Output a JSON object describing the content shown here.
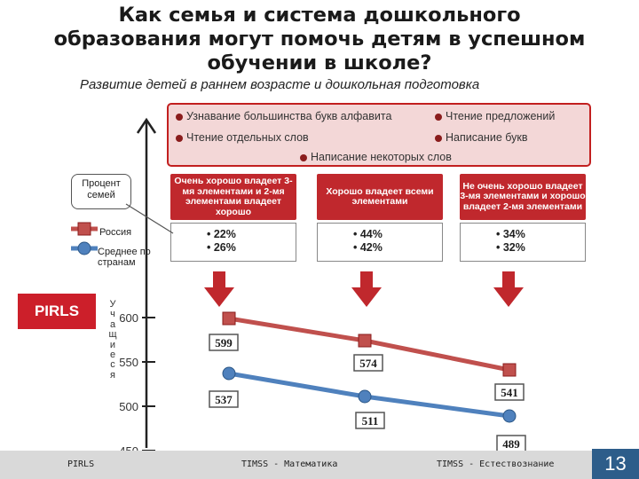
{
  "title_lines": [
    "Как семья и система дошкольного",
    "образования могут помочь детям в успешном",
    "обучении в школе?"
  ],
  "subtitle": "Развитие детей в раннем возрасте и дошкольная подготовка",
  "skills_legend": [
    "Узнавание большинства букв алфавита",
    "Чтение предложений",
    "Чтение отдельных слов",
    "Написание букв",
    "Написание некоторых слов"
  ],
  "callout": "Процент семей",
  "mini_legend": {
    "russia": "Россия",
    "average": "Среднее по странам"
  },
  "categories": [
    {
      "header": "Очень хорошо владеет 3-мя элементами и 2-мя элементами владеет хорошо",
      "russia": "• 22%",
      "average": "• 26%"
    },
    {
      "header": "Хорошо владеет всеми элементами",
      "russia": "• 44%",
      "average": "• 42%"
    },
    {
      "header": "Не очень хорошо владеет 3-мя элементами и хорошо владеет 2-мя элементами",
      "russia": "• 34%",
      "average": "• 32%"
    }
  ],
  "pirls_tag": "PIRLS",
  "ylabel": "Учащиеся",
  "footer": {
    "left": "PIRLS",
    "mid": "TIMSS - Математика",
    "right": "TIMSS - Естествознание"
  },
  "page_number": "13",
  "colors": {
    "accent_red": "#c0282d",
    "russia_line": "#c0504d",
    "average_line": "#4f81bd"
  },
  "chart_data": {
    "type": "line",
    "categories": [
      "Очень хорошо",
      "Хорошо",
      "Не очень хорошо"
    ],
    "series": [
      {
        "name": "Россия",
        "values": [
          599,
          574,
          541
        ]
      },
      {
        "name": "Среднее по странам",
        "values": [
          537,
          511,
          489
        ]
      }
    ],
    "value_labels": [
      [
        "599",
        "574",
        "541"
      ],
      [
        "537",
        "511",
        "489"
      ]
    ],
    "yticks": [
      "450",
      "500",
      "550",
      "600"
    ],
    "ylim": [
      450,
      600
    ],
    "grid": false
  }
}
